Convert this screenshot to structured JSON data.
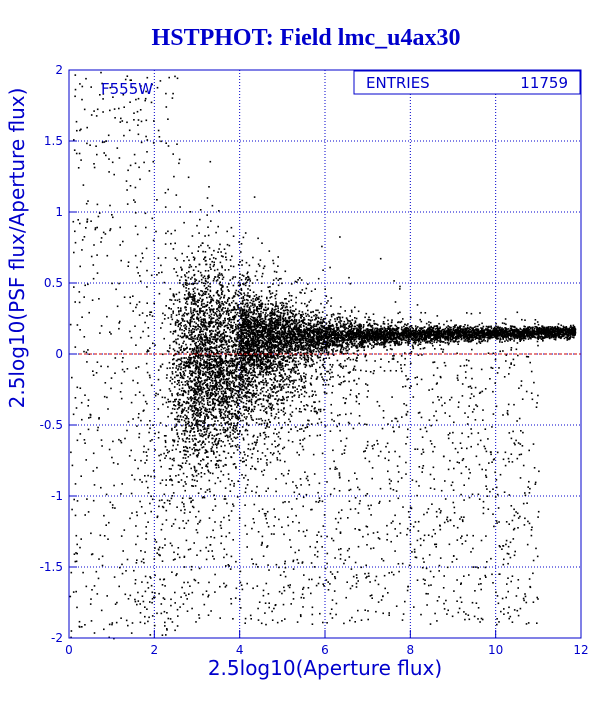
{
  "chart_data": {
    "type": "scatter",
    "title": "HSTPHOT: Field lmc_u4ax30",
    "xlabel": "2.5log10(Aperture flux)",
    "ylabel": "2.5log10(PSF flux/Aperture flux)",
    "filter_label": "F555W",
    "stats": {
      "label": "ENTRIES",
      "value": "11759"
    },
    "xlim": [
      0,
      12
    ],
    "ylim": [
      -2,
      2
    ],
    "x_ticks": [
      0,
      2,
      4,
      6,
      8,
      10,
      12
    ],
    "x_tick_labels": [
      "0",
      "2",
      "4",
      "6",
      "8",
      "10",
      "12"
    ],
    "y_ticks": [
      -2,
      -1.5,
      -1,
      -0.5,
      0,
      0.5,
      1,
      1.5,
      2
    ],
    "y_tick_labels": [
      "-2",
      "-1.5",
      "-1",
      "-0.5",
      "0",
      "0.5",
      "1",
      "1.5",
      "2"
    ],
    "grid": true,
    "reference_line": {
      "y": 0,
      "style": "dashed"
    },
    "entries": 11759,
    "points_description": "dense locus near y=0.1-0.2 for x 4-12, broad scatter for x 2-6 between -1 and 0.5",
    "colors": {
      "frame": "#0000cc",
      "text": "#0000cc",
      "points": "#000000",
      "reference_line": "#cc0000",
      "background": "#ffffff"
    }
  }
}
